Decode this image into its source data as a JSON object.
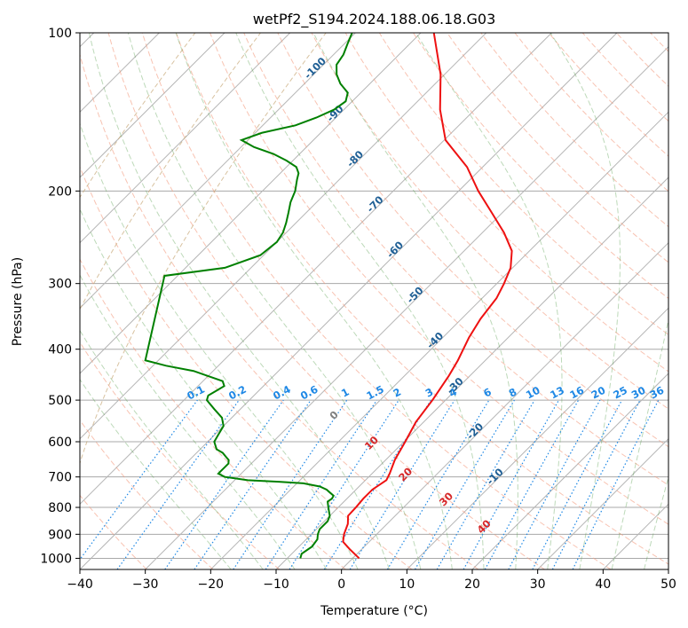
{
  "chart_data": {
    "type": "skewt",
    "title": "wetPf2_S194.2024.188.06.18.G03",
    "xlabel": "Temperature (°C)",
    "ylabel": "Pressure (hPa)",
    "xlim": [
      -40,
      50
    ],
    "ylim": [
      1050,
      100
    ],
    "x_ticks": [
      "−40",
      "−30",
      "−20",
      "−10",
      "0",
      "10",
      "20",
      "30",
      "40",
      "50"
    ],
    "y_ticks": [
      "100",
      "200",
      "300",
      "400",
      "500",
      "600",
      "700",
      "800",
      "900",
      "1000"
    ],
    "temperature": {
      "color": "#ee1111",
      "p": [
        1000,
        960,
        930,
        900,
        860,
        830,
        800,
        770,
        740,
        710,
        690,
        650,
        600,
        550,
        500,
        450,
        420,
        380,
        350,
        320,
        300,
        280,
        260,
        240,
        220,
        200,
        180,
        160,
        140,
        120,
        100
      ],
      "t": [
        1.0,
        -1.9,
        -4.0,
        -5.0,
        -6.0,
        -7.2,
        -7.3,
        -7.5,
        -7.5,
        -6.8,
        -7.3,
        -8.6,
        -9.8,
        -11.2,
        -12.0,
        -13.2,
        -14.2,
        -16.0,
        -17.1,
        -17.8,
        -18.9,
        -20.3,
        -22.7,
        -26.7,
        -31.6,
        -37.0,
        -42.4,
        -49.8,
        -55.3,
        -60.6,
        -68.0
      ]
    },
    "dewpoint": {
      "color": "#008000",
      "p": [
        1000,
        980,
        950,
        920,
        900,
        880,
        850,
        830,
        820,
        810,
        800,
        790,
        780,
        770,
        760,
        750,
        740,
        730,
        720,
        715,
        710,
        700,
        690,
        680,
        670,
        660,
        650,
        640,
        630,
        620,
        600,
        580,
        560,
        540,
        520,
        500,
        490,
        480,
        470,
        460,
        450,
        440,
        430,
        420,
        290,
        280,
        265,
        250,
        240,
        230,
        220,
        210,
        200,
        190,
        185,
        180,
        175,
        170,
        165,
        160,
        155,
        150,
        145,
        140,
        135,
        130,
        125,
        120,
        115,
        110,
        105,
        100
      ],
      "t": [
        -8.0,
        -8.5,
        -8.0,
        -8.3,
        -9.0,
        -9.5,
        -9.5,
        -10.0,
        -10.5,
        -11.0,
        -11.5,
        -12.0,
        -12.5,
        -12.3,
        -12.5,
        -13.5,
        -14.5,
        -16.0,
        -19.0,
        -23.0,
        -28.0,
        -32.0,
        -33.5,
        -33.5,
        -33.5,
        -33.5,
        -34.0,
        -35.0,
        -36.0,
        -37.5,
        -39.0,
        -39.5,
        -40.0,
        -41.5,
        -44.0,
        -46.5,
        -47.0,
        -46.5,
        -46.0,
        -47.0,
        -50.0,
        -53.0,
        -58.0,
        -62.0,
        -72.0,
        -64.0,
        -60.5,
        -60.0,
        -60.5,
        -61.5,
        -62.7,
        -64.0,
        -65.0,
        -66.5,
        -67.2,
        -68.5,
        -71.0,
        -74.0,
        -78.0,
        -81.0,
        -79.0,
        -75.0,
        -73.0,
        -71.5,
        -71.0,
        -72.0,
        -74.5,
        -76.5,
        -78.0,
        -78.5,
        -79.5,
        -80.5
      ]
    },
    "dry_adiabats_C": [
      -100,
      -90,
      -80,
      -70,
      -60,
      -50,
      -40,
      -30,
      -20,
      -10
    ],
    "mixing_ratio_labels": [
      "0.1",
      "0.2",
      "0.4",
      "0.6",
      "1",
      "1.5",
      "2",
      "3",
      "4",
      "6",
      "8",
      "10",
      "13",
      "16",
      "20",
      "25",
      "30",
      "36"
    ],
    "mixing_ratio_values": [
      0.1,
      0.2,
      0.4,
      0.6,
      1,
      1.5,
      2,
      3,
      4,
      6,
      8,
      10,
      13,
      16,
      20,
      25,
      30,
      36
    ],
    "moist_adiabat_labels": [
      "0",
      "10",
      "20",
      "30",
      "40"
    ],
    "grid": true
  }
}
